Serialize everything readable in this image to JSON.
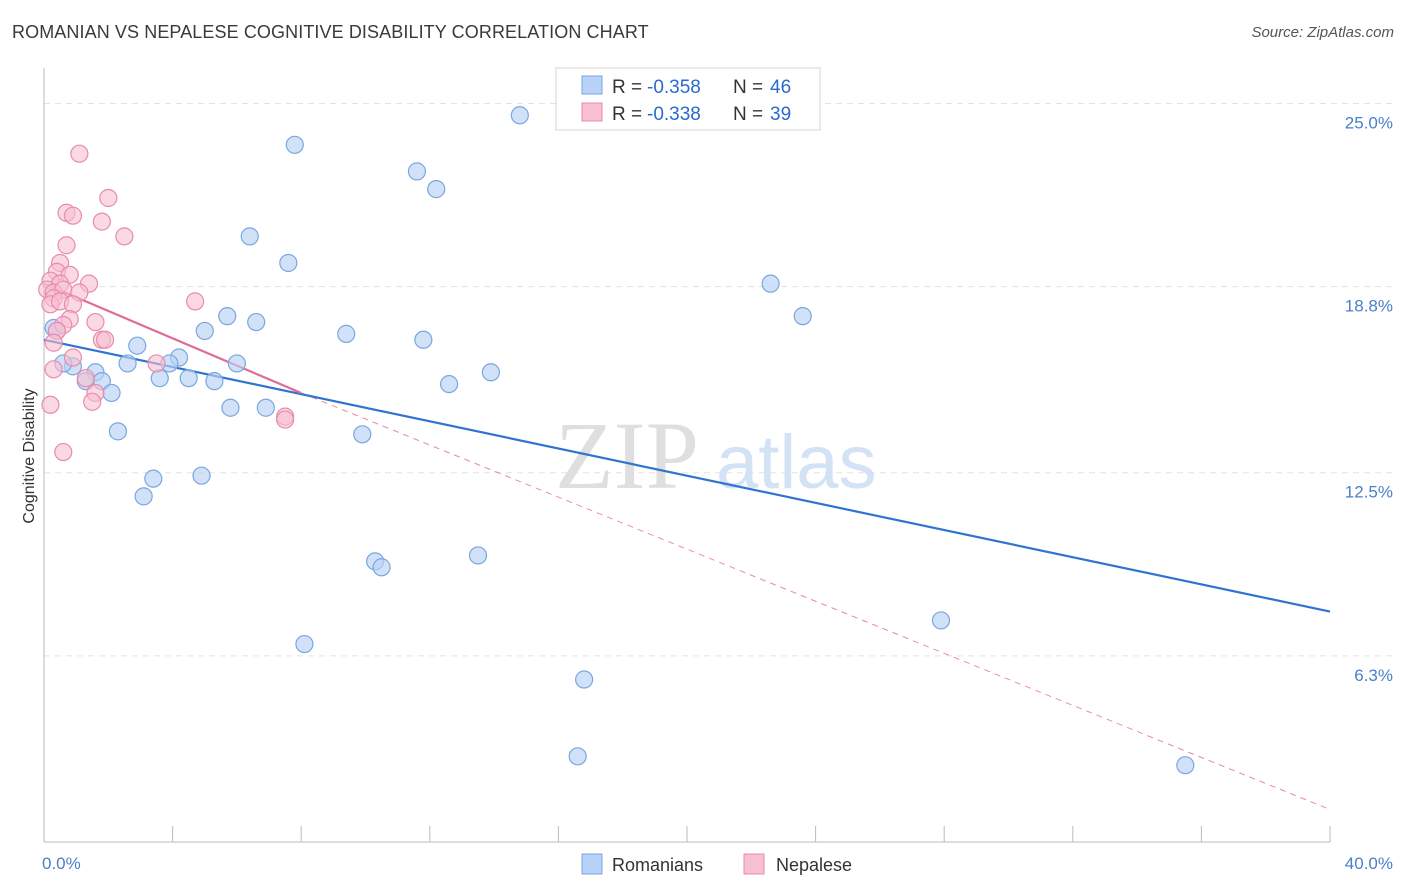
{
  "header": {
    "title": "ROMANIAN VS NEPALESE COGNITIVE DISABILITY CORRELATION CHART",
    "source": "Source: ZipAtlas.com"
  },
  "watermark": {
    "zip": "ZIP",
    "atlas": "atlas"
  },
  "legend": {
    "romanians": {
      "r_label": "R = ",
      "r_value": "-0.358",
      "n_label": "N = ",
      "n_value": "46"
    },
    "nepalese": {
      "r_label": "R = ",
      "r_value": "-0.338",
      "n_label": "N = ",
      "n_value": "39"
    }
  },
  "bottom_legend": {
    "romanians": "Romanians",
    "nepalese": "Nepalese"
  },
  "colors": {
    "romanians_fill": "#b8d3f5",
    "romanians_stroke": "#7aa6e0",
    "romanians_line": "#2f74d0",
    "nepalese_fill": "#f7bfd2",
    "nepalese_stroke": "#e98bab",
    "nepalese_line": "#e06a98",
    "grid": "#e3e3e3",
    "tick_text": "#4a7fc9"
  },
  "chart_data": {
    "type": "scatter",
    "title": "ROMANIAN VS NEPALESE COGNITIVE DISABILITY CORRELATION CHART",
    "xlabel": "",
    "ylabel": "Cognitive Disability",
    "xlim": [
      0,
      40
    ],
    "ylim": [
      0,
      26.2
    ],
    "x_tick_labels": [
      {
        "value": 0,
        "label": "0.0%"
      },
      {
        "value": 40,
        "label": "40.0%"
      }
    ],
    "y_tick_labels": [
      {
        "value": 6.3,
        "label": "6.3%"
      },
      {
        "value": 12.5,
        "label": "12.5%"
      },
      {
        "value": 18.8,
        "label": "18.8%"
      },
      {
        "value": 25.0,
        "label": "25.0%"
      }
    ],
    "series": [
      {
        "name": "Romanians",
        "points": [
          [
            14.8,
            24.6
          ],
          [
            7.8,
            23.6
          ],
          [
            11.6,
            22.7
          ],
          [
            12.2,
            22.1
          ],
          [
            6.4,
            20.5
          ],
          [
            7.6,
            19.6
          ],
          [
            22.6,
            18.9
          ],
          [
            23.6,
            17.8
          ],
          [
            5.7,
            17.8
          ],
          [
            6.6,
            17.6
          ],
          [
            5.0,
            17.3
          ],
          [
            9.4,
            17.2
          ],
          [
            11.8,
            17.0
          ],
          [
            0.3,
            17.4
          ],
          [
            0.4,
            17.3
          ],
          [
            2.9,
            16.8
          ],
          [
            4.2,
            16.4
          ],
          [
            2.6,
            16.2
          ],
          [
            3.9,
            16.2
          ],
          [
            6.0,
            16.2
          ],
          [
            13.9,
            15.9
          ],
          [
            0.9,
            16.1
          ],
          [
            0.6,
            16.2
          ],
          [
            1.6,
            15.9
          ],
          [
            1.3,
            15.6
          ],
          [
            1.8,
            15.6
          ],
          [
            3.6,
            15.7
          ],
          [
            4.5,
            15.7
          ],
          [
            5.3,
            15.6
          ],
          [
            12.6,
            15.5
          ],
          [
            2.1,
            15.2
          ],
          [
            5.8,
            14.7
          ],
          [
            6.9,
            14.7
          ],
          [
            9.9,
            13.8
          ],
          [
            2.3,
            13.9
          ],
          [
            4.9,
            12.4
          ],
          [
            3.4,
            12.3
          ],
          [
            3.1,
            11.7
          ],
          [
            10.3,
            9.5
          ],
          [
            10.5,
            9.3
          ],
          [
            13.5,
            9.7
          ],
          [
            27.9,
            7.5
          ],
          [
            8.1,
            6.7
          ],
          [
            16.8,
            5.5
          ],
          [
            16.6,
            2.9
          ],
          [
            35.5,
            2.6
          ]
        ],
        "trendline": {
          "x": [
            0,
            40
          ],
          "y": [
            17.0,
            7.8
          ]
        }
      },
      {
        "name": "Nepalese",
        "points": [
          [
            1.1,
            23.3
          ],
          [
            0.7,
            21.3
          ],
          [
            2.0,
            21.8
          ],
          [
            0.9,
            21.2
          ],
          [
            1.8,
            21.0
          ],
          [
            2.5,
            20.5
          ],
          [
            0.7,
            20.2
          ],
          [
            0.5,
            19.6
          ],
          [
            0.4,
            19.3
          ],
          [
            0.8,
            19.2
          ],
          [
            0.2,
            19.0
          ],
          [
            0.5,
            18.9
          ],
          [
            1.4,
            18.9
          ],
          [
            0.1,
            18.7
          ],
          [
            0.3,
            18.6
          ],
          [
            0.6,
            18.7
          ],
          [
            1.1,
            18.6
          ],
          [
            0.3,
            18.4
          ],
          [
            0.2,
            18.2
          ],
          [
            0.5,
            18.3
          ],
          [
            0.9,
            18.2
          ],
          [
            4.7,
            18.3
          ],
          [
            0.8,
            17.7
          ],
          [
            1.6,
            17.6
          ],
          [
            0.6,
            17.5
          ],
          [
            0.4,
            17.3
          ],
          [
            1.8,
            17.0
          ],
          [
            1.9,
            17.0
          ],
          [
            0.3,
            16.9
          ],
          [
            0.9,
            16.4
          ],
          [
            3.5,
            16.2
          ],
          [
            0.3,
            16.0
          ],
          [
            1.3,
            15.7
          ],
          [
            1.6,
            15.2
          ],
          [
            1.5,
            14.9
          ],
          [
            0.2,
            14.8
          ],
          [
            7.5,
            14.4
          ],
          [
            7.5,
            14.3
          ],
          [
            0.6,
            13.2
          ]
        ],
        "trendline": {
          "x": [
            0,
            8.0
          ],
          "y": [
            18.9,
            15.2
          ]
        },
        "trendline_extension": {
          "x": [
            8.0,
            40
          ],
          "y": [
            15.2,
            1.1
          ]
        }
      }
    ],
    "legend_position": "top-center"
  }
}
